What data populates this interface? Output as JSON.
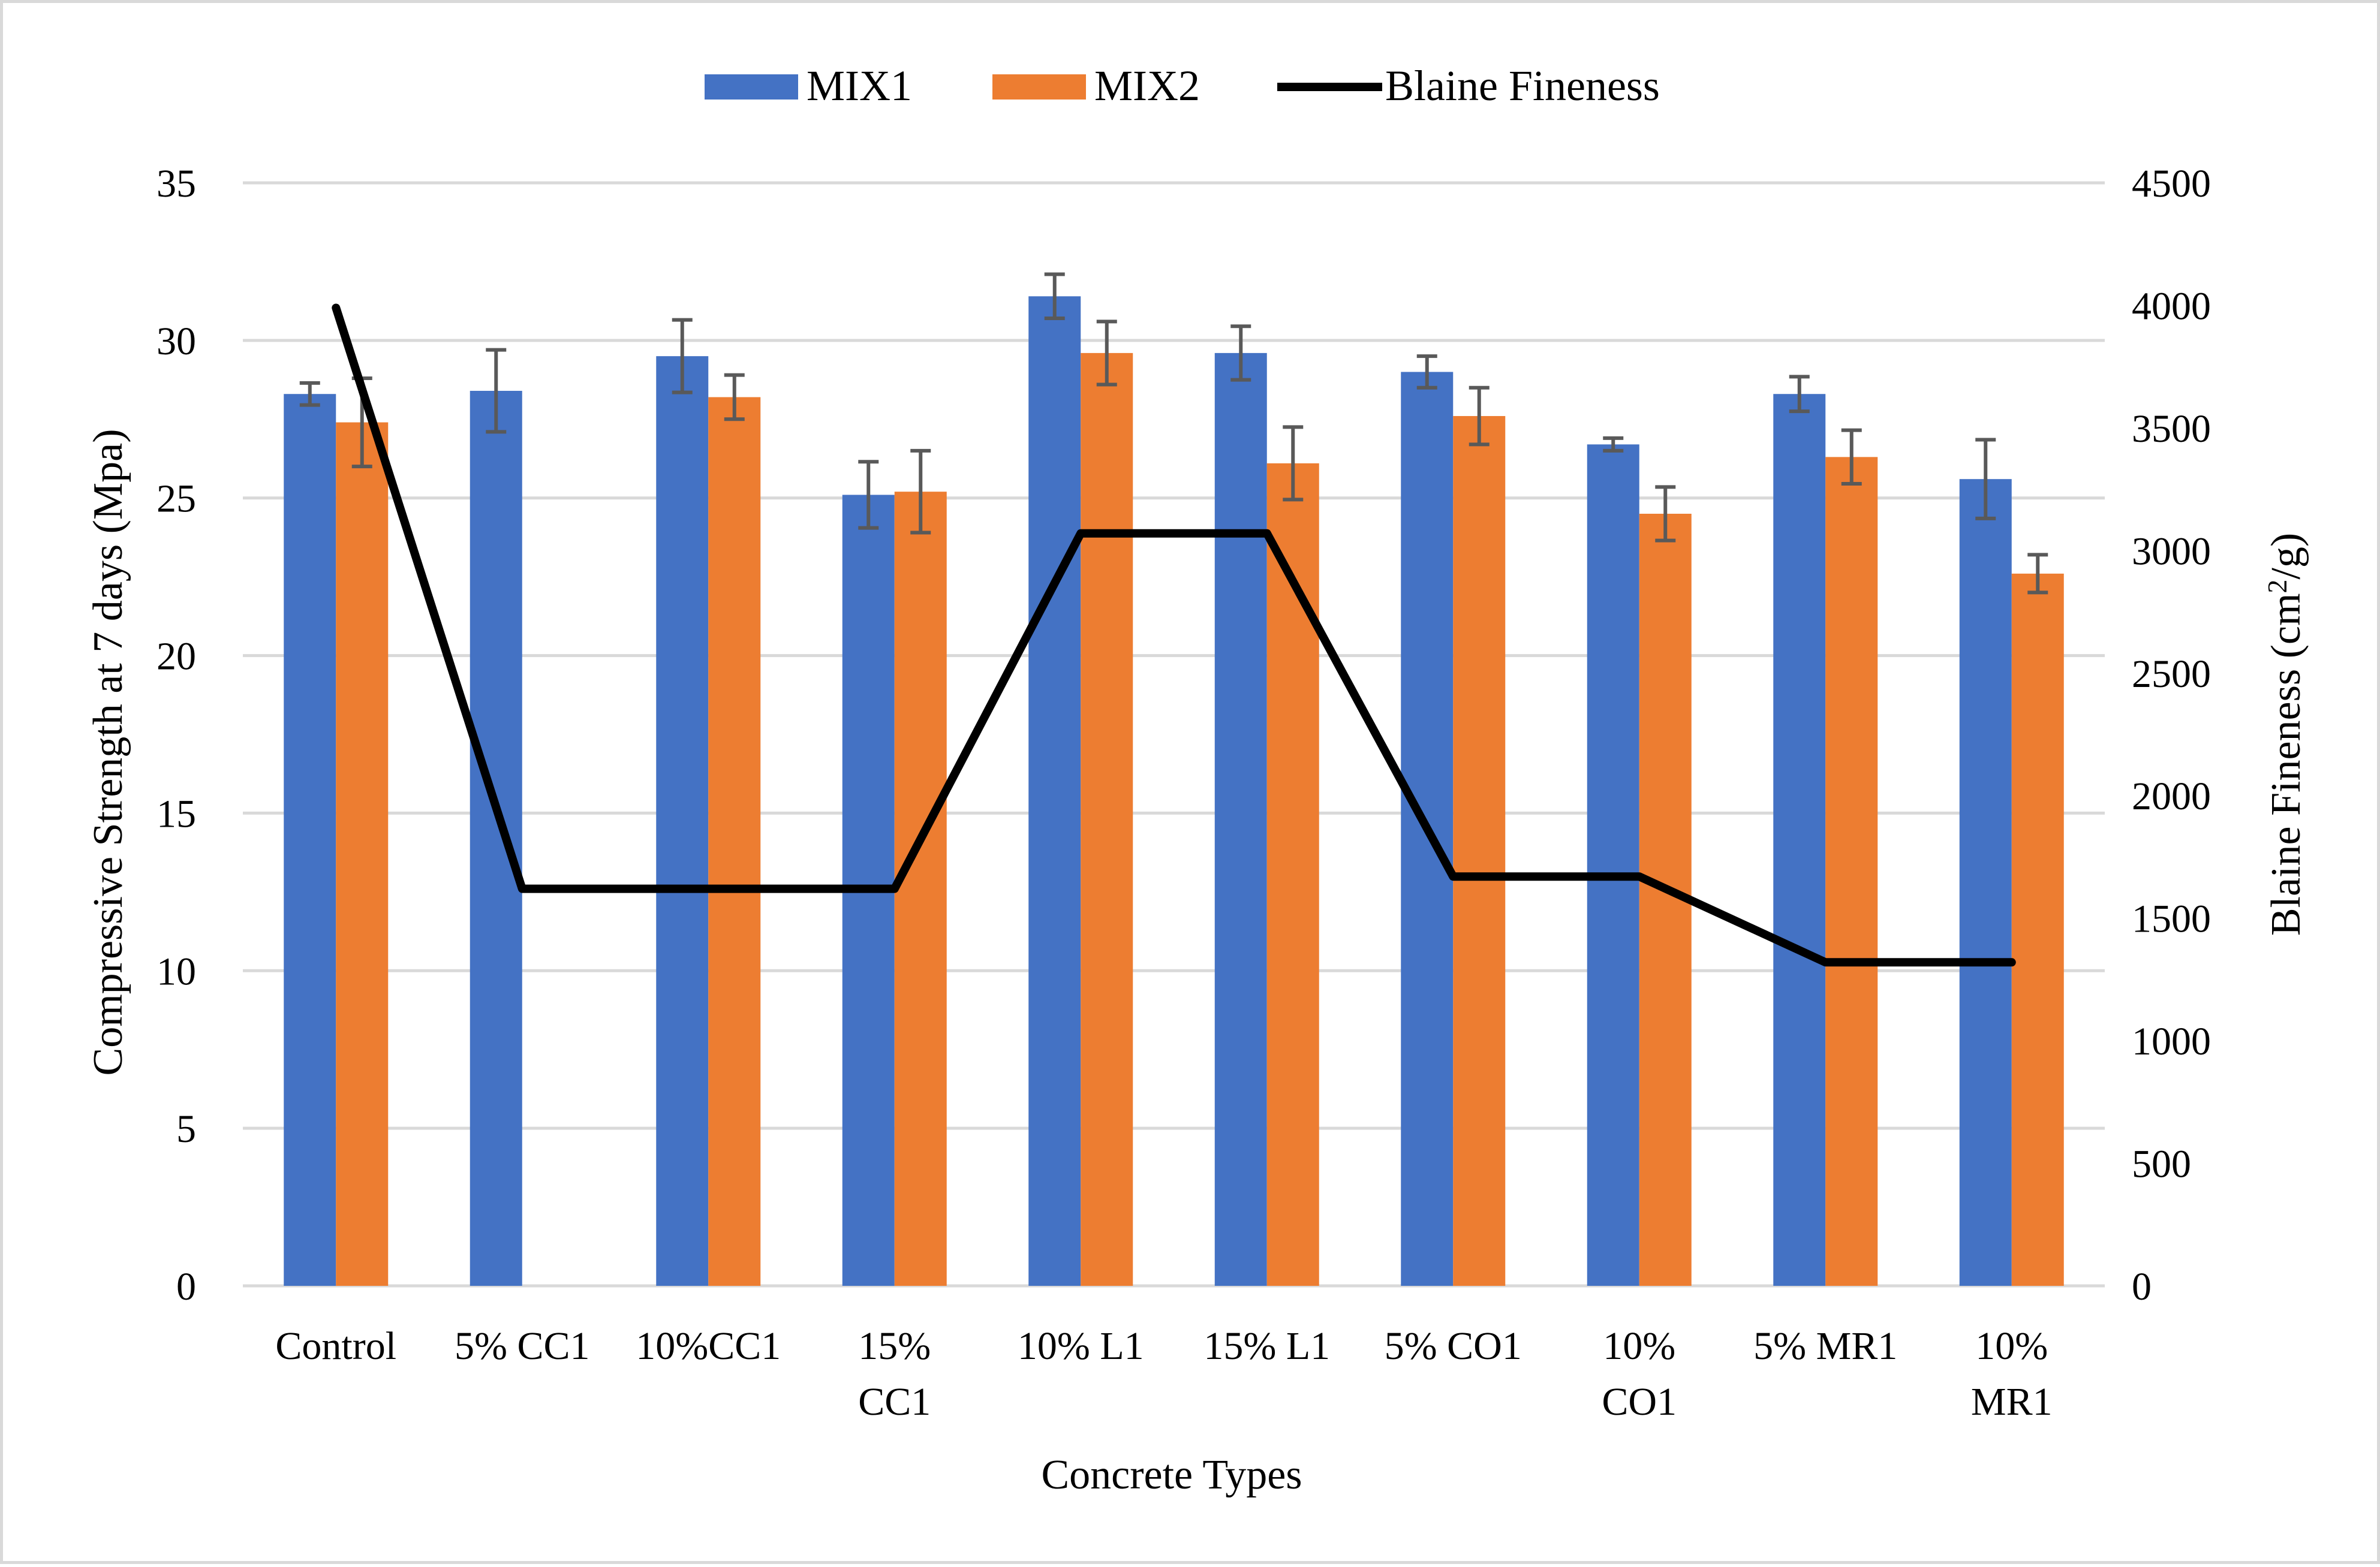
{
  "chart_data": {
    "type": "bar",
    "title": "",
    "xlabel": "Concrete Types",
    "ylabel": "Compressive Strength at 7 days (Mpa)",
    "y2label": "Blaine Fineness (cm²/g)",
    "y2label_parts": {
      "base": "Blaine Fineness (cm",
      "sup": "2",
      "tail": "/g)"
    },
    "ylim": [
      0,
      35
    ],
    "y2lim": [
      0,
      4500
    ],
    "yticks": [
      "0",
      "5",
      "10",
      "15",
      "20",
      "25",
      "30",
      "35"
    ],
    "y2ticks": [
      "0",
      "500",
      "1000",
      "1500",
      "2000",
      "2500",
      "3000",
      "3500",
      "4000",
      "4500"
    ],
    "categories": [
      [
        "Control"
      ],
      [
        "5% CC1"
      ],
      [
        "10%CC1"
      ],
      [
        "15%",
        "CC1"
      ],
      [
        "10% L1"
      ],
      [
        "15% L1"
      ],
      [
        "5% CO1"
      ],
      [
        "10%",
        "CO1"
      ],
      [
        "5% MR1"
      ],
      [
        "10%",
        "MR1"
      ]
    ],
    "series": [
      {
        "name": "MIX1",
        "color": "#4472c4",
        "values": [
          28.3,
          28.4,
          29.5,
          25.1,
          31.4,
          29.6,
          29.0,
          26.7,
          28.3,
          25.6
        ],
        "errors": [
          0.35,
          1.3,
          1.15,
          1.05,
          0.7,
          0.85,
          0.5,
          0.2,
          0.55,
          1.25
        ]
      },
      {
        "name": "MIX2",
        "color": "#ed7d31",
        "values": [
          27.4,
          null,
          28.2,
          25.2,
          29.6,
          26.1,
          27.6,
          24.5,
          26.3,
          22.6
        ],
        "errors": [
          1.4,
          null,
          0.7,
          1.3,
          1.0,
          1.15,
          0.9,
          0.85,
          0.85,
          0.6
        ]
      },
      {
        "name": "Blaine Fineness",
        "color": "#000000",
        "type": "line",
        "axis": "right",
        "values": [
          3990,
          1620,
          1620,
          1620,
          3070,
          3070,
          1670,
          1670,
          1320,
          1320
        ]
      }
    ],
    "legend": "top-center",
    "grid": true
  }
}
